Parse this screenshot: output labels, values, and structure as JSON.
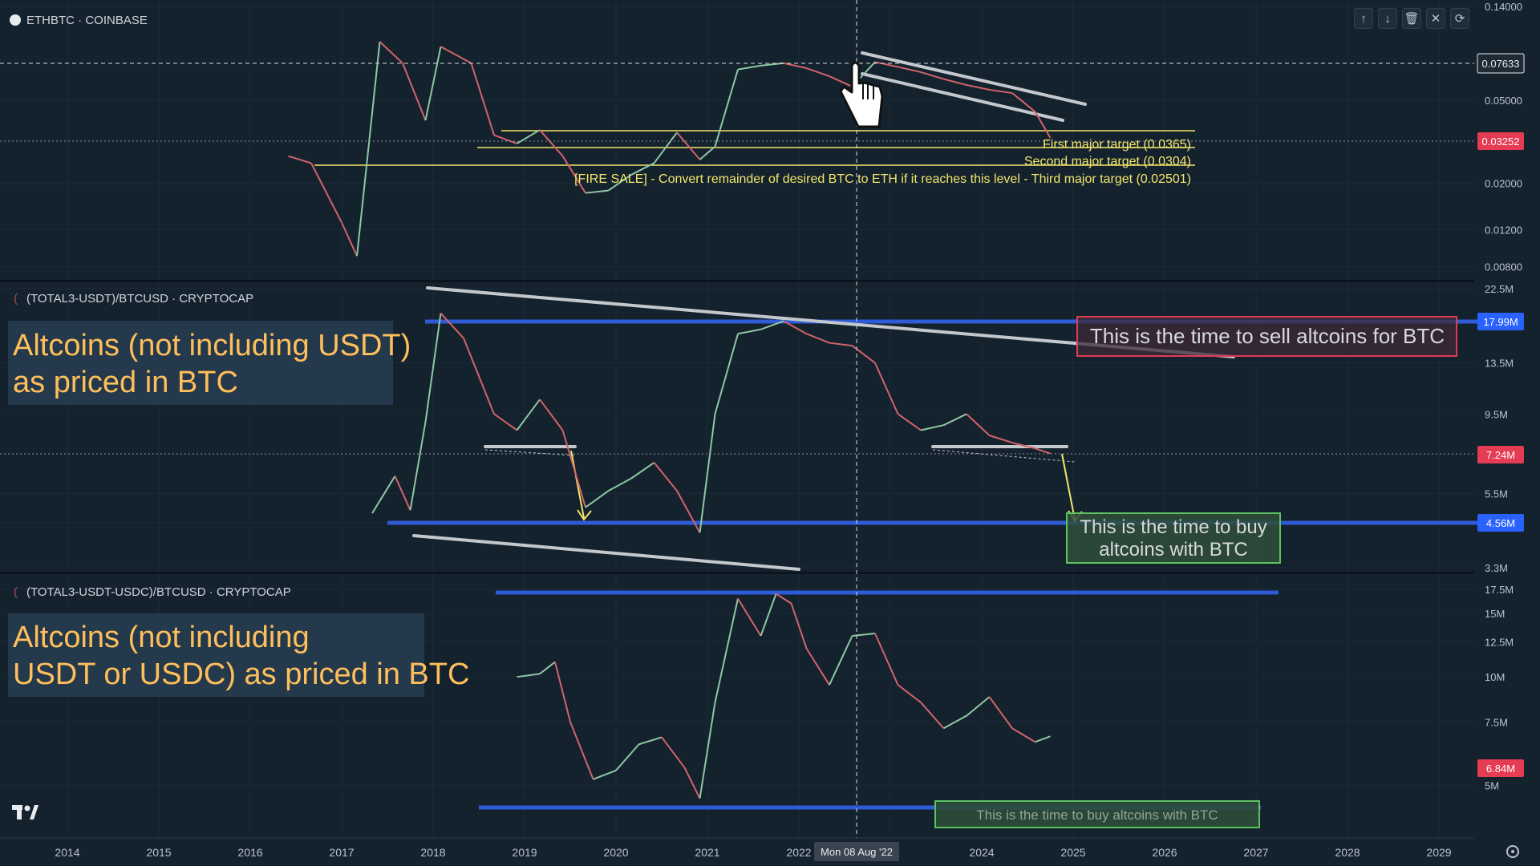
{
  "chart_data": [
    {
      "type": "line",
      "title": "ETHBTC · COINBASE",
      "x_range": [
        "2013-06",
        "2029-06"
      ],
      "ylim": [
        0.0075,
        0.14
      ],
      "y_scale": "log",
      "y_ticks": [
        "0.14000",
        "0.05000",
        "0.02000",
        "0.01200",
        "0.00800"
      ],
      "crosshair_value": "0.07633",
      "last_value": "0.03252",
      "series": [
        {
          "x": [
            "2016-06",
            "2016-09",
            "2017-01",
            "2017-03",
            "2017-06",
            "2017-09",
            "2017-12",
            "2018-02",
            "2018-06",
            "2018-09",
            "2018-12",
            "2019-03",
            "2019-06",
            "2019-09",
            "2019-12",
            "2020-03",
            "2020-06",
            "2020-09",
            "2020-12",
            "2021-02",
            "2021-05",
            "2021-08",
            "2021-11",
            "2022-02",
            "2022-05",
            "2022-08",
            "2022-11",
            "2023-02",
            "2023-05",
            "2023-08",
            "2023-11",
            "2024-02",
            "2024-05",
            "2024-08",
            "2024-10"
          ],
          "y": [
            0.027,
            0.025,
            0.013,
            0.009,
            0.095,
            0.075,
            0.04,
            0.09,
            0.075,
            0.034,
            0.031,
            0.036,
            0.027,
            0.018,
            0.0185,
            0.022,
            0.025,
            0.035,
            0.026,
            0.03,
            0.07,
            0.073,
            0.075,
            0.071,
            0.065,
            0.058,
            0.076,
            0.072,
            0.068,
            0.063,
            0.059,
            0.056,
            0.054,
            0.044,
            0.033
          ]
        }
      ],
      "annotations": [
        "First major target (0.0365)",
        "Second major target (0.0304)",
        "[FIRE SALE] - Convert remainder of desired BTC to ETH if it reaches this level - Third major target (0.02501)"
      ]
    },
    {
      "type": "line",
      "title": "(TOTAL3-USDT)/BTCUSD · CRYPTOCAP",
      "x_range": [
        "2013-06",
        "2029-06"
      ],
      "ylim": [
        3.3,
        22.5
      ],
      "y_scale": "log",
      "y_ticks": [
        "22.5M",
        "13.5M",
        "9.5M",
        "5.5M",
        "4.5M",
        "3.3M"
      ],
      "tick_values": [
        22.5,
        13.5,
        9.5,
        5.5,
        4.5,
        3.3
      ],
      "last_value": "7.24M",
      "level_labels": [
        "17.99M",
        "4.56M"
      ],
      "series": [
        {
          "x": [
            "2017-05",
            "2017-08",
            "2017-10",
            "2017-12",
            "2018-02",
            "2018-05",
            "2018-09",
            "2018-12",
            "2019-03",
            "2019-06",
            "2019-09",
            "2019-12",
            "2020-03",
            "2020-06",
            "2020-09",
            "2020-12",
            "2021-02",
            "2021-05",
            "2021-08",
            "2021-11",
            "2022-02",
            "2022-05",
            "2022-08",
            "2022-11",
            "2023-02",
            "2023-05",
            "2023-08",
            "2023-11",
            "2024-02",
            "2024-05",
            "2024-08",
            "2024-10"
          ],
          "y": [
            4.8,
            6.2,
            4.9,
            9,
            19,
            16,
            9.5,
            8.5,
            10.5,
            8.5,
            5,
            5.6,
            6.1,
            6.8,
            5.6,
            4.2,
            9.5,
            16.5,
            17,
            18,
            16.5,
            15.5,
            15.2,
            13.5,
            9.5,
            8.5,
            8.8,
            9.5,
            8.2,
            7.8,
            7.5,
            7.24
          ]
        }
      ],
      "annotations": [
        "Altcoins (not including USDT) as priced in BTC",
        "This is the time to sell altcoins for BTC",
        "This is the time to buy altcoins with BTC"
      ]
    },
    {
      "type": "line",
      "title": "(TOTAL3-USDT-USDC)/BTCUSD · CRYPTOCAP",
      "x_range": [
        "2013-06",
        "2029-06"
      ],
      "ylim": [
        4.5,
        17.5
      ],
      "y_scale": "log",
      "y_ticks": [
        "17.5M",
        "15M",
        "12.5M",
        "10M",
        "7.5M",
        "5M"
      ],
      "tick_values": [
        17.5,
        15,
        12.5,
        10,
        7.5,
        5
      ],
      "last_value": "6.84M",
      "series": [
        {
          "x": [
            "2018-12",
            "2019-03",
            "2019-05",
            "2019-07",
            "2019-10",
            "2020-01",
            "2020-04",
            "2020-07",
            "2020-10",
            "2020-12",
            "2021-02",
            "2021-05",
            "2021-08",
            "2021-10",
            "2021-12",
            "2022-02",
            "2022-05",
            "2022-08",
            "2022-11",
            "2023-02",
            "2023-05",
            "2023-08",
            "2023-11",
            "2024-02",
            "2024-05",
            "2024-08",
            "2024-10"
          ],
          "y": [
            10,
            10.2,
            11,
            7.5,
            5.2,
            5.5,
            6.5,
            6.8,
            5.6,
            4.6,
            8.5,
            16.5,
            13,
            17,
            16,
            12,
            9.5,
            13,
            13.2,
            9.5,
            8.5,
            7.2,
            7.8,
            8.8,
            7.2,
            6.6,
            6.84
          ]
        }
      ],
      "annotations": [
        "Altcoins (not including USDT or USDC) as priced in BTC",
        "This is the time to buy altcoins with BTC"
      ]
    }
  ],
  "xaxis": {
    "ticks": [
      "2014",
      "2015",
      "2016",
      "2017",
      "2018",
      "2019",
      "2020",
      "2021",
      "2022",
      "2023",
      "2024",
      "2025",
      "2026",
      "2027",
      "2028",
      "2029"
    ],
    "crosshair_label": "Mon 08 Aug '22"
  },
  "colors": {
    "background": "#14222e",
    "candle_up": "#8fc7a6",
    "candle_down": "#d2636b",
    "level_line": "#2f5bd6",
    "trend_line": "#c4c8cc",
    "target_line": "#f3e66b",
    "arrow": "#f3e66b",
    "label_red": "#e53b53",
    "label_blue": "#2962ff",
    "text_orange": "#ffbf5a",
    "sell_box": "#e23b55",
    "buy_box": "#5bc25f"
  },
  "icons": [
    "arrow-up-icon",
    "arrow-down-icon",
    "trash-icon",
    "close-icon",
    "refresh-icon",
    "tradingview-logo-icon",
    "settings-icon",
    "hand-cursor-icon"
  ]
}
